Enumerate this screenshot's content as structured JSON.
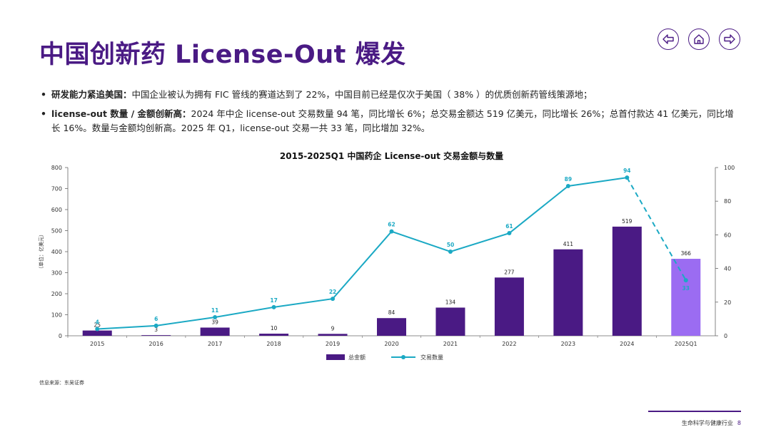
{
  "header": {
    "title": "中国创新药 License-Out 爆发"
  },
  "nav": {
    "prev_icon": "left-arrow-icon",
    "home_icon": "home-icon",
    "next_icon": "right-arrow-icon",
    "accent": "#4a1a84"
  },
  "bullets": [
    {
      "marker": "•",
      "lead": "研发能力紧追美国：",
      "text": "中国企业被认为拥有 FIC 管线的赛道达到了 22%，中国目前已经是仅次于美国（ 38% ）的优质创新药管线策源地；"
    },
    {
      "marker": "•",
      "lead": "license-out 数量 / 金额创新高：",
      "text": "2024 年中企 license-out 交易数量 94 笔，同比增长 6%；总交易金额达 519 亿美元，同比增长 26%；总首付款达 41 亿美元，同比增长 16%。数量与金额均创新高。2025 年 Q1，license-out 交易一共 33 笔，同比增加 32%。"
    }
  ],
  "chart_data": {
    "type": "bar",
    "title": "2015-2025Q1 中国药企 License-out 交易金额与数量",
    "ylabel": "（单位：亿美元）",
    "categories": [
      "2015",
      "2016",
      "2017",
      "2018",
      "2019",
      "2020",
      "2021",
      "2022",
      "2023",
      "2024",
      "2025Q1"
    ],
    "ylim": [
      0,
      800
    ],
    "yticks": [
      0,
      100,
      200,
      300,
      400,
      500,
      600,
      700,
      800
    ],
    "y2lim": [
      0,
      100
    ],
    "y2ticks": [
      0,
      20,
      40,
      60,
      80,
      100
    ],
    "series": [
      {
        "name": "总金额",
        "type": "bar",
        "axis": "left",
        "color": "#4a1a84",
        "highlight_color": "#9b6cf2",
        "highlight_index": 10,
        "values": [
          25,
          3,
          39,
          10,
          9,
          84,
          134,
          277,
          411,
          519,
          366
        ]
      },
      {
        "name": "交易数量",
        "type": "line",
        "axis": "right",
        "color": "#1ba9c4",
        "dashed_from_index": 9,
        "values": [
          4,
          6,
          11,
          17,
          22,
          62,
          50,
          61,
          89,
          94,
          33
        ]
      }
    ],
    "legend": "bottom-center"
  },
  "footer": {
    "source": "信息来源：东吴证券",
    "section": "生命科学与健康行业",
    "page": "8"
  }
}
